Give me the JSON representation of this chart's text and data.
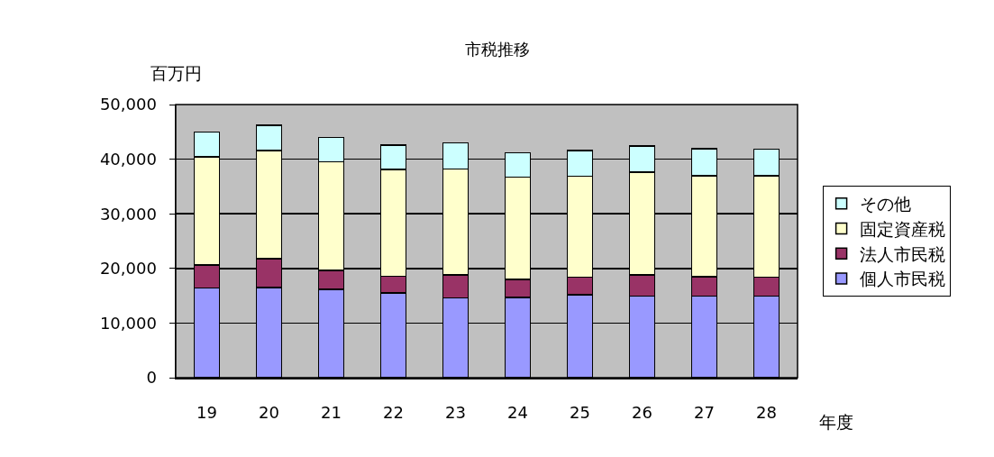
{
  "chart_data": {
    "type": "bar",
    "title": "市税推移",
    "xlabel": "年度",
    "ylabel": "百万円",
    "categories": [
      "19",
      "20",
      "21",
      "22",
      "23",
      "24",
      "25",
      "26",
      "27",
      "28"
    ],
    "series": [
      {
        "name": "個人市民税",
        "color": "#9999ff",
        "values": [
          16400,
          16500,
          16200,
          15500,
          14600,
          14700,
          15200,
          14900,
          14900,
          14900
        ]
      },
      {
        "name": "法人市民税",
        "color": "#993366",
        "values": [
          4200,
          5300,
          3400,
          3100,
          4200,
          3300,
          3200,
          3900,
          3600,
          3500
        ]
      },
      {
        "name": "固定資産税",
        "color": "#ffffcc",
        "values": [
          19800,
          19800,
          19900,
          19500,
          19400,
          18700,
          18500,
          18800,
          18500,
          18600
        ]
      },
      {
        "name": "その他",
        "color": "#ccffff",
        "values": [
          4600,
          4600,
          4500,
          4500,
          4800,
          4500,
          4700,
          4800,
          4900,
          4800
        ]
      }
    ],
    "stacked": true,
    "ylim": [
      0,
      50000
    ],
    "yticks": [
      0,
      {
        "value": 10000,
        "label": "10,000"
      },
      {
        "value": 20000,
        "label": "20,000"
      },
      {
        "value": 30000,
        "label": "30,000"
      },
      {
        "value": 40000,
        "label": "40,000"
      },
      {
        "value": 50000,
        "label": "50,000"
      }
    ],
    "grid": "y",
    "legend": "right"
  }
}
